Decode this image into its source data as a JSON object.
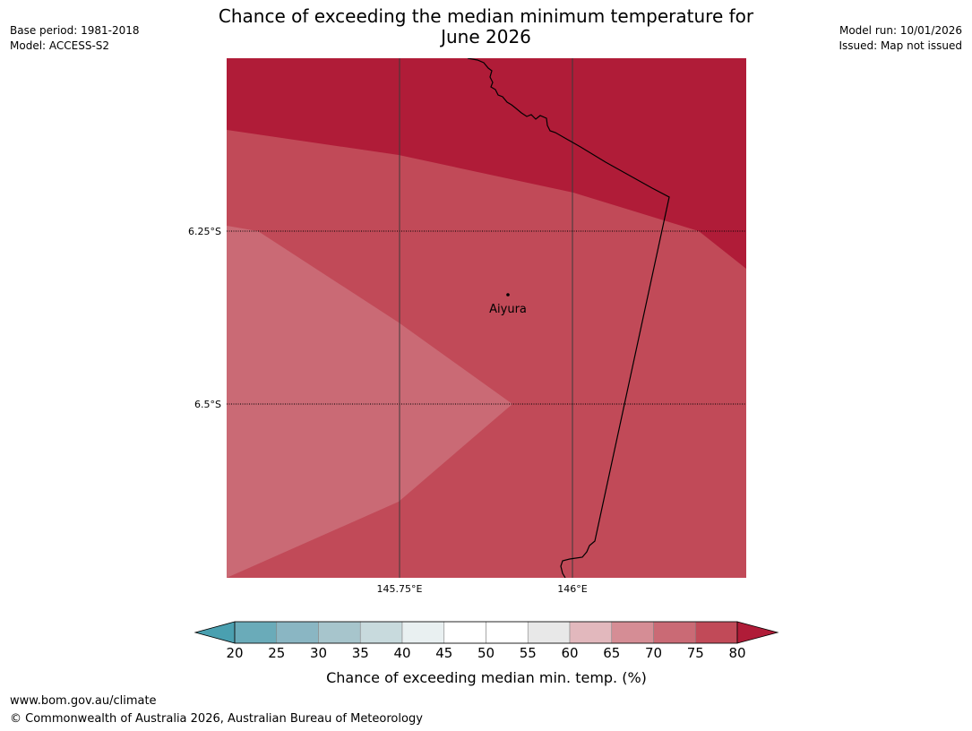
{
  "header": {
    "title_line1": "Chance of exceeding the median minimum temperature for",
    "title_line2": "June 2026",
    "base_period": "Base period: 1981-2018",
    "model": "Model: ACCESS-S2",
    "model_run": "Model run: 10/01/2026",
    "issued": "Issued: Map not issued"
  },
  "map": {
    "lat_labels": [
      "6.25°S",
      "6.5°S"
    ],
    "lon_labels": [
      "145.75°E",
      "146°E"
    ],
    "place_name": "Aiyura",
    "band_colors": {
      "gt80": "#b01c38",
      "b75_80": "#c14a58",
      "b70_75": "#ca6a75"
    }
  },
  "legend": {
    "title": "Chance of exceeding median min. temp. (%)",
    "ticks": [
      "20",
      "25",
      "30",
      "35",
      "40",
      "45",
      "50",
      "55",
      "60",
      "65",
      "70",
      "75",
      "80"
    ],
    "below_color": "#4aa0b0",
    "above_color": "#b01c38",
    "colors": [
      "#6aabb9",
      "#8ab6c3",
      "#a7c5cc",
      "#c8dadd",
      "#e9f0f1",
      "#ffffff",
      "#ffffff",
      "#e8e8e8",
      "#e2b8bd",
      "#d58d95",
      "#ca6a75",
      "#c14a58"
    ]
  },
  "footer": {
    "url": "www.bom.gov.au/climate",
    "copyright": "© Commonwealth of Australia 2026, Australian Bureau of Meteorology"
  }
}
